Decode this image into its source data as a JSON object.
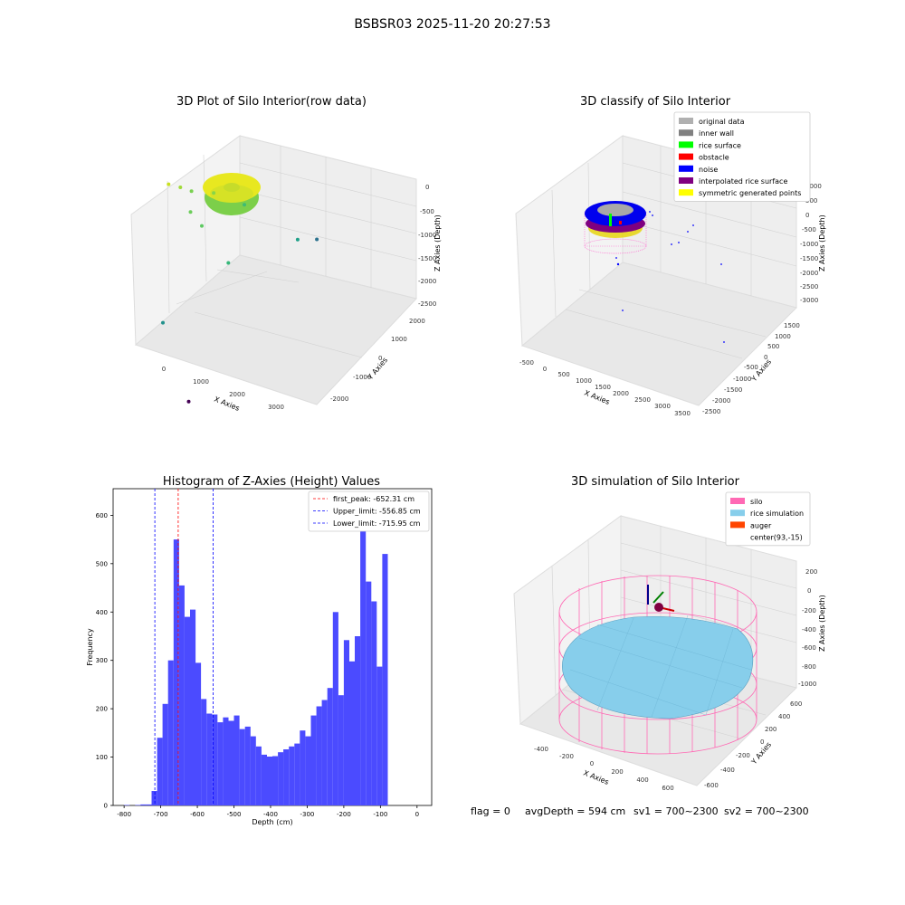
{
  "figure": {
    "suptitle": "BSBSR03 2025-11-20 20:27:53",
    "footer": {
      "flag": "flag = 0",
      "avg_depth": "avgDepth = 594 cm",
      "sv1": "sv1 = 700~2300",
      "sv2": "sv2 = 700~2300"
    }
  },
  "chart_data": [
    {
      "type": "scatter",
      "projection": "3d",
      "title": "3D Plot of Silo Interior(row data)",
      "xlabel": "X Axies",
      "ylabel": "Y Axies",
      "zlabel": "Z Axies (Depth)",
      "x_ticks": [
        "0",
        "1000",
        "2000",
        "3000"
      ],
      "y_ticks": [
        "-2000",
        "-1000",
        "0",
        "1000",
        "2000"
      ],
      "z_ticks": [
        "0",
        "-500",
        "-1000",
        "-1500",
        "-2000",
        "-2500"
      ],
      "colormap": "viridis (by depth)",
      "grid": true,
      "points": [
        {
          "x": 180,
          "y": 40,
          "z": -620,
          "color": "#c8e020"
        },
        {
          "x": 450,
          "y": 80,
          "z": -650,
          "color": "#a0da39"
        },
        {
          "x": 700,
          "y": 120,
          "z": -700,
          "color": "#7ad151"
        },
        {
          "x": 900,
          "y": -100,
          "z": -900,
          "color": "#6ccd5a"
        },
        {
          "x": 1100,
          "y": 300,
          "z": -800,
          "color": "#86d549"
        },
        {
          "x": 1300,
          "y": -200,
          "z": -1000,
          "color": "#5ec962"
        },
        {
          "x": 1600,
          "y": 600,
          "z": -1200,
          "color": "#3fbc73"
        },
        {
          "x": 2100,
          "y": -300,
          "z": -1500,
          "color": "#35b779"
        },
        {
          "x": 2900,
          "y": 700,
          "z": -1700,
          "color": "#1fa088"
        },
        {
          "x": 3200,
          "y": 900,
          "z": -1800,
          "color": "#2c728e"
        },
        {
          "x": 1300,
          "y": -1200,
          "z": -2200,
          "color": "#21918c"
        },
        {
          "x": 2900,
          "y": -2100,
          "z": -2650,
          "color": "#440154"
        }
      ]
    },
    {
      "type": "scatter",
      "projection": "3d",
      "title": "3D classify of Silo Interior",
      "xlabel": "X Axies",
      "ylabel": "Y Axies",
      "zlabel": "Z Axies (Depth)",
      "x_ticks": [
        "-500",
        "0",
        "500",
        "1000",
        "1500",
        "2000",
        "2500",
        "3000",
        "3500"
      ],
      "y_ticks": [
        "-2500",
        "-2000",
        "-1500",
        "-1000",
        "-500",
        "0",
        "500",
        "1000",
        "1500"
      ],
      "z_ticks": [
        "1000",
        "500",
        "0",
        "-500",
        "-1000",
        "-1500",
        "-2000",
        "-2500",
        "-3000"
      ],
      "legend_position": "top-right",
      "grid": true,
      "legend": [
        {
          "name": "original data",
          "color": "#b0b0b0"
        },
        {
          "name": "inner wall",
          "color": "#808080"
        },
        {
          "name": "rice surface",
          "color": "#00ff00"
        },
        {
          "name": "obstacle",
          "color": "#ff0000"
        },
        {
          "name": "noise",
          "color": "#0000ff"
        },
        {
          "name": "interpolated rice surface",
          "color": "#800080"
        },
        {
          "name": "symmetric generated points",
          "color": "#ffff00"
        }
      ]
    },
    {
      "type": "bar",
      "title": "Histogram of Z-Axies (Height) Values",
      "xlabel": "Depth (cm)",
      "ylabel": "Frequency",
      "xlim": [
        -830,
        40
      ],
      "ylim": [
        0,
        655
      ],
      "bin_width": 15,
      "bar_color": "#4b4bff",
      "x_ticks": [
        -800,
        -700,
        -600,
        -500,
        -400,
        -300,
        -200,
        -100,
        0
      ],
      "y_ticks": [
        0,
        100,
        200,
        300,
        400,
        500,
        600
      ],
      "legend_position": "top-right",
      "bins": [
        {
          "left": -800,
          "value": 1
        },
        {
          "left": -785,
          "value": 0
        },
        {
          "left": -770,
          "value": 1
        },
        {
          "left": -755,
          "value": 2
        },
        {
          "left": -740,
          "value": 2
        },
        {
          "left": -725,
          "value": 30
        },
        {
          "left": -710,
          "value": 140
        },
        {
          "left": -695,
          "value": 210
        },
        {
          "left": -680,
          "value": 300
        },
        {
          "left": -665,
          "value": 550
        },
        {
          "left": -650,
          "value": 455
        },
        {
          "left": -635,
          "value": 390
        },
        {
          "left": -620,
          "value": 405
        },
        {
          "left": -605,
          "value": 295
        },
        {
          "left": -590,
          "value": 220
        },
        {
          "left": -575,
          "value": 190
        },
        {
          "left": -560,
          "value": 188
        },
        {
          "left": -545,
          "value": 172
        },
        {
          "left": -530,
          "value": 182
        },
        {
          "left": -515,
          "value": 175
        },
        {
          "left": -500,
          "value": 186
        },
        {
          "left": -485,
          "value": 158
        },
        {
          "left": -470,
          "value": 163
        },
        {
          "left": -455,
          "value": 143
        },
        {
          "left": -440,
          "value": 122
        },
        {
          "left": -425,
          "value": 105
        },
        {
          "left": -410,
          "value": 101
        },
        {
          "left": -395,
          "value": 102
        },
        {
          "left": -380,
          "value": 110
        },
        {
          "left": -365,
          "value": 116
        },
        {
          "left": -350,
          "value": 122
        },
        {
          "left": -335,
          "value": 128
        },
        {
          "left": -320,
          "value": 155
        },
        {
          "left": -305,
          "value": 143
        },
        {
          "left": -290,
          "value": 186
        },
        {
          "left": -275,
          "value": 205
        },
        {
          "left": -260,
          "value": 218
        },
        {
          "left": -245,
          "value": 243
        },
        {
          "left": -230,
          "value": 400
        },
        {
          "left": -215,
          "value": 228
        },
        {
          "left": -200,
          "value": 342
        },
        {
          "left": -185,
          "value": 298
        },
        {
          "left": -170,
          "value": 350
        },
        {
          "left": -155,
          "value": 578
        },
        {
          "left": -140,
          "value": 463
        },
        {
          "left": -125,
          "value": 422
        },
        {
          "left": -110,
          "value": 287
        },
        {
          "left": -95,
          "value": 520
        }
      ],
      "vlines": [
        {
          "name": "first_peak: -652.31 cm",
          "x": -652.31,
          "color": "#ff0000"
        },
        {
          "name": "Upper_limit: -556.85 cm",
          "x": -556.85,
          "color": "#0000ff"
        },
        {
          "name": "Lower_limit: -715.95 cm",
          "x": -715.95,
          "color": "#0000ff"
        }
      ]
    },
    {
      "type": "surface",
      "projection": "3d",
      "title": "3D simulation of Silo Interior",
      "xlabel": "X Axies",
      "ylabel": "Y Axies",
      "zlabel": "Z Axies (Depth)",
      "x_ticks": [
        "-400",
        "-200",
        "0",
        "200",
        "400",
        "600"
      ],
      "y_ticks": [
        "-600",
        "-400",
        "-200",
        "0",
        "200",
        "400",
        "600"
      ],
      "z_ticks": [
        "200",
        "0",
        "-200",
        "-400",
        "-600",
        "-800",
        "-1000"
      ],
      "legend_position": "top-right",
      "grid": true,
      "legend": [
        {
          "name": "silo",
          "color": "#ff69b4"
        },
        {
          "name": "rice simulation",
          "color": "#87ceeb"
        },
        {
          "name": "auger",
          "color": "#ff4500"
        },
        {
          "name": "center(93,-15)",
          "color": ""
        }
      ]
    }
  ]
}
